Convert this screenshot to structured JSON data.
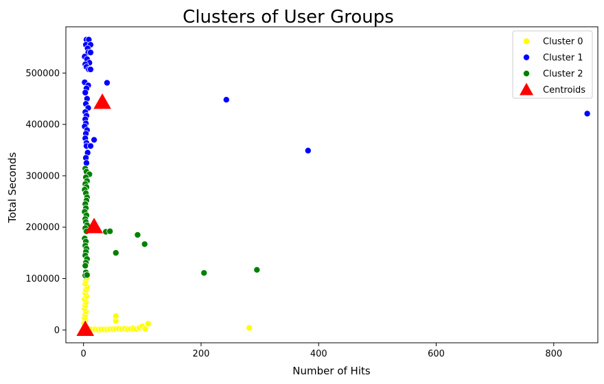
{
  "chart_data": {
    "type": "scatter",
    "title": "Clusters of User Groups",
    "xlabel": "Number of Hits",
    "ylabel": "Total Seconds",
    "xlim": [
      -30,
      875
    ],
    "ylim": [
      -25000,
      590000
    ],
    "xticks": [
      0,
      200,
      400,
      600,
      800
    ],
    "yticks": [
      0,
      100000,
      200000,
      300000,
      400000,
      500000
    ],
    "grid": false,
    "legend_position": "top-right",
    "series": [
      {
        "name": "Cluster 0",
        "color": "#ffff00",
        "marker": "circle",
        "points": [
          [
            1,
            0
          ],
          [
            2,
            2000
          ],
          [
            3,
            5000
          ],
          [
            2,
            9000
          ],
          [
            1,
            14000
          ],
          [
            3,
            19000
          ],
          [
            2,
            24000
          ],
          [
            3,
            30000
          ],
          [
            4,
            36000
          ],
          [
            2,
            42000
          ],
          [
            3,
            48000
          ],
          [
            4,
            54000
          ],
          [
            2,
            60000
          ],
          [
            5,
            66000
          ],
          [
            3,
            72000
          ],
          [
            4,
            78000
          ],
          [
            6,
            84000
          ],
          [
            3,
            90000
          ],
          [
            4,
            96000
          ],
          [
            5,
            101000
          ],
          [
            6,
            3000
          ],
          [
            8,
            1000
          ],
          [
            10,
            1500
          ],
          [
            15,
            800
          ],
          [
            20,
            1200
          ],
          [
            25,
            500
          ],
          [
            30,
            900
          ],
          [
            35,
            1000
          ],
          [
            40,
            700
          ],
          [
            45,
            1500
          ],
          [
            50,
            1300
          ],
          [
            55,
            1800
          ],
          [
            55,
            18000
          ],
          [
            55,
            27000
          ],
          [
            60,
            2200
          ],
          [
            65,
            1700
          ],
          [
            70,
            2500
          ],
          [
            75,
            1400
          ],
          [
            80,
            2000
          ],
          [
            85,
            3000
          ],
          [
            90,
            1600
          ],
          [
            95,
            4000
          ],
          [
            100,
            7000
          ],
          [
            105,
            2000
          ],
          [
            110,
            12000
          ],
          [
            282,
            4000
          ]
        ]
      },
      {
        "name": "Cluster 1",
        "color": "#0000ff",
        "marker": "circle",
        "points": [
          [
            5,
            565000
          ],
          [
            9,
            565000
          ],
          [
            4,
            555000
          ],
          [
            12,
            555000
          ],
          [
            7,
            548000
          ],
          [
            8,
            540000
          ],
          [
            12,
            540000
          ],
          [
            2,
            532000
          ],
          [
            6,
            527000
          ],
          [
            10,
            520000
          ],
          [
            3,
            517000
          ],
          [
            5,
            512000
          ],
          [
            9,
            507000
          ],
          [
            12,
            507000
          ],
          [
            2,
            482000
          ],
          [
            8,
            476000
          ],
          [
            40,
            481000
          ],
          [
            5,
            470000
          ],
          [
            3,
            462000
          ],
          [
            6,
            450000
          ],
          [
            32,
            448000
          ],
          [
            4,
            440000
          ],
          [
            8,
            432000
          ],
          [
            3,
            424000
          ],
          [
            5,
            417000
          ],
          [
            3,
            410000
          ],
          [
            4,
            402000
          ],
          [
            2,
            396000
          ],
          [
            6,
            389000
          ],
          [
            4,
            382000
          ],
          [
            3,
            373000
          ],
          [
            18,
            370000
          ],
          [
            5,
            364000
          ],
          [
            5,
            358000
          ],
          [
            12,
            358000
          ],
          [
            7,
            345000
          ],
          [
            4,
            335000
          ],
          [
            5,
            325000
          ],
          [
            243,
            448000
          ],
          [
            382,
            349000
          ],
          [
            857,
            421000
          ]
        ]
      },
      {
        "name": "Cluster 2",
        "color": "#008000",
        "marker": "circle",
        "points": [
          [
            3,
            314000
          ],
          [
            5,
            308000
          ],
          [
            10,
            303000
          ],
          [
            4,
            297000
          ],
          [
            6,
            290000
          ],
          [
            3,
            284000
          ],
          [
            5,
            278000
          ],
          [
            2,
            273000
          ],
          [
            4,
            266000
          ],
          [
            6,
            258000
          ],
          [
            5,
            252000
          ],
          [
            3,
            245000
          ],
          [
            4,
            237000
          ],
          [
            2,
            230000
          ],
          [
            5,
            223000
          ],
          [
            3,
            216000
          ],
          [
            4,
            210000
          ],
          [
            6,
            204000
          ],
          [
            3,
            198000
          ],
          [
            5,
            192000
          ],
          [
            38,
            191000
          ],
          [
            45,
            192000
          ],
          [
            92,
            185000
          ],
          [
            2,
            178000
          ],
          [
            4,
            172000
          ],
          [
            104,
            167000
          ],
          [
            3,
            164000
          ],
          [
            5,
            158000
          ],
          [
            4,
            152000
          ],
          [
            55,
            150000
          ],
          [
            3,
            145000
          ],
          [
            6,
            138000
          ],
          [
            4,
            131000
          ],
          [
            3,
            125000
          ],
          [
            205,
            111000
          ],
          [
            295,
            117000
          ],
          [
            4,
            112000
          ],
          [
            3,
            106000
          ],
          [
            6,
            107000
          ]
        ]
      },
      {
        "name": "Centroids",
        "color": "#ff0000",
        "marker": "triangle",
        "points": [
          [
            32,
            443000
          ],
          [
            18,
            201000
          ],
          [
            3,
            1000
          ]
        ]
      }
    ]
  }
}
